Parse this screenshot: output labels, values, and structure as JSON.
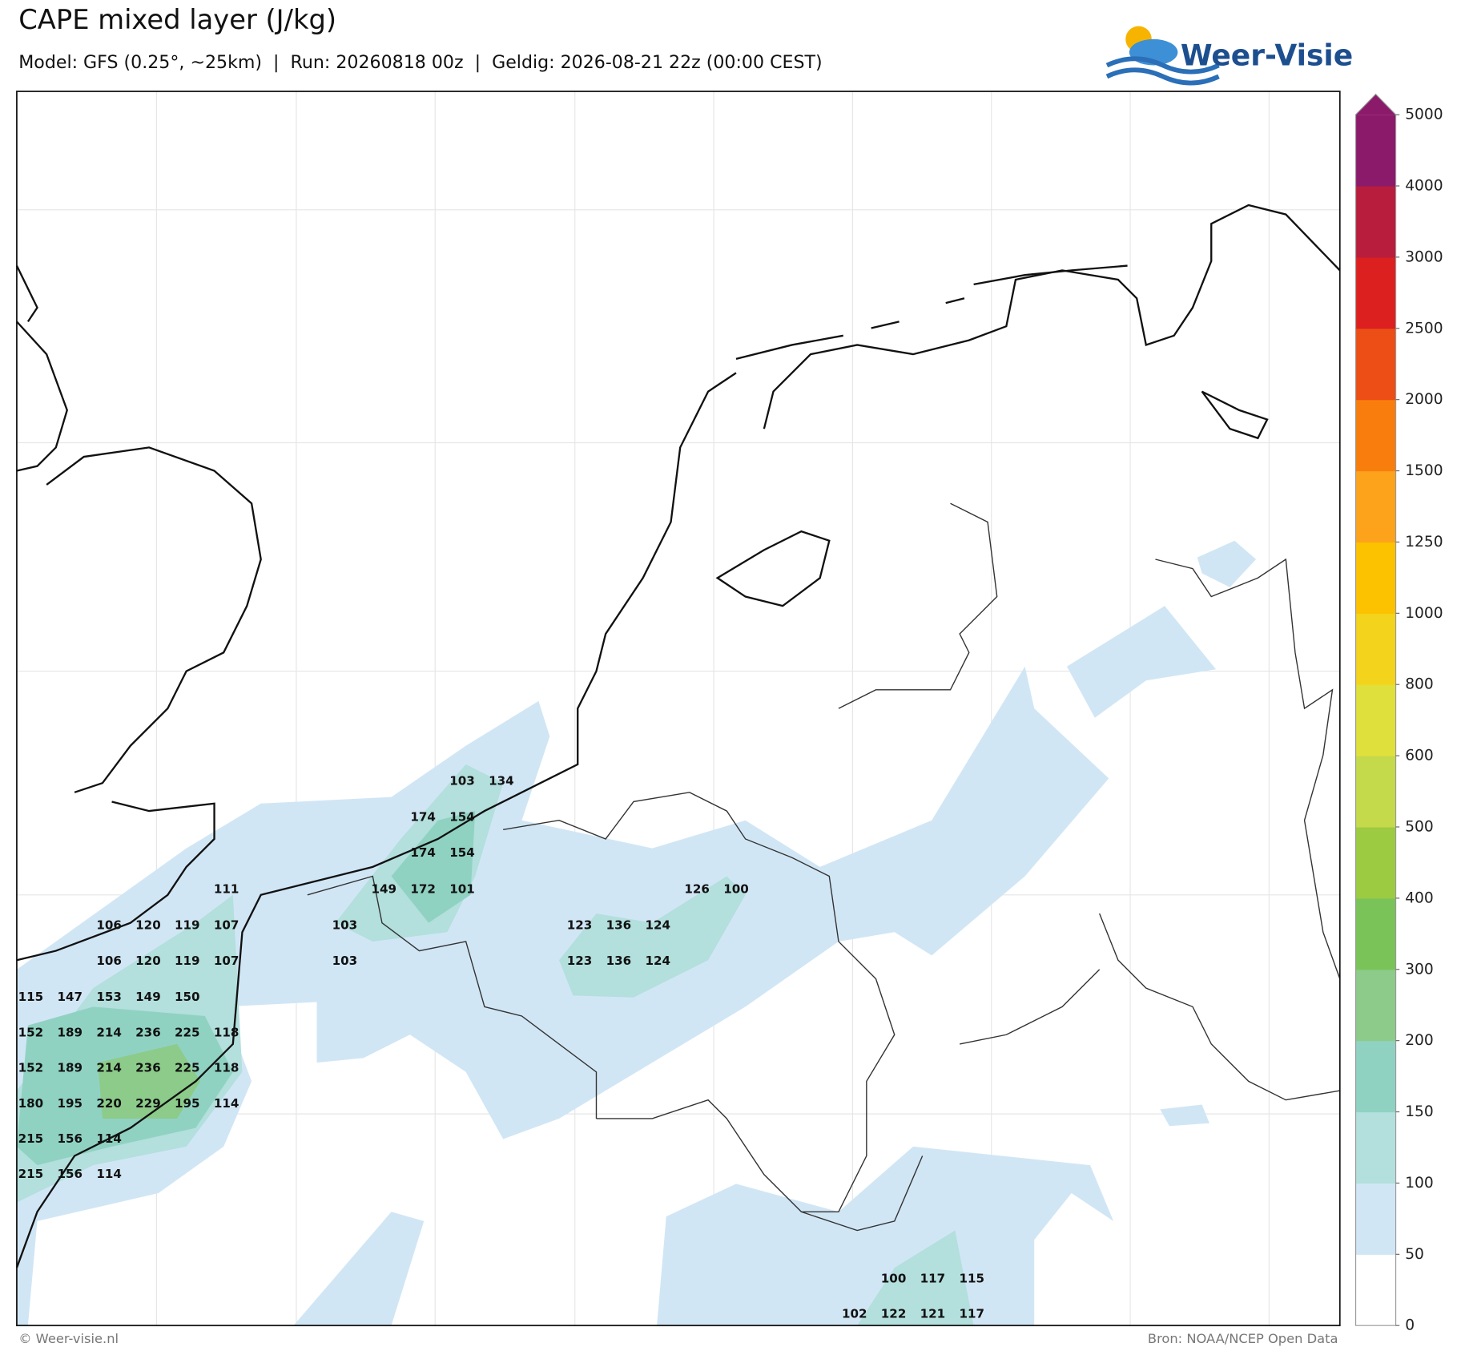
{
  "header": {
    "title": "CAPE mixed layer (J/kg)",
    "subtitle": "Model: GFS (0.25°, ~25km)  |  Run: 20260818 00z  |  Geldig: 2026-08-21 22z (00:00 CEST)",
    "logo": "Weer-Visie"
  },
  "colorbar": {
    "ticks": [
      0,
      50,
      100,
      150,
      200,
      300,
      400,
      500,
      600,
      800,
      1000,
      1250,
      1500,
      2000,
      2500,
      3000,
      4000,
      5000
    ],
    "colors": [
      "#ffffff",
      "#d1e6f5",
      "#b3dfdd",
      "#90d2c2",
      "#8ccb8a",
      "#7ac358",
      "#9ccb42",
      "#c4da4b",
      "#dfe03c",
      "#f3d31b",
      "#fcc200",
      "#fca31b",
      "#f97d0c",
      "#ec4e16",
      "#dc201f",
      "#b81d3d",
      "#8b1a6b"
    ]
  },
  "value_labels": [
    103,
    134,
    174,
    154,
    174,
    154,
    111,
    149,
    172,
    101,
    126,
    100,
    106,
    120,
    119,
    107,
    103,
    123,
    136,
    124,
    106,
    120,
    119,
    107,
    103,
    123,
    136,
    124,
    115,
    147,
    153,
    149,
    150,
    152,
    189,
    214,
    236,
    225,
    118,
    152,
    189,
    214,
    236,
    225,
    118,
    180,
    195,
    220,
    229,
    195,
    114,
    215,
    156,
    114,
    215,
    156,
    114,
    100,
    117,
    115,
    102,
    122,
    121,
    117
  ],
  "footer": {
    "left": "© Weer-visie.nl",
    "right": "Bron: NOAA/NCEP Open Data"
  }
}
